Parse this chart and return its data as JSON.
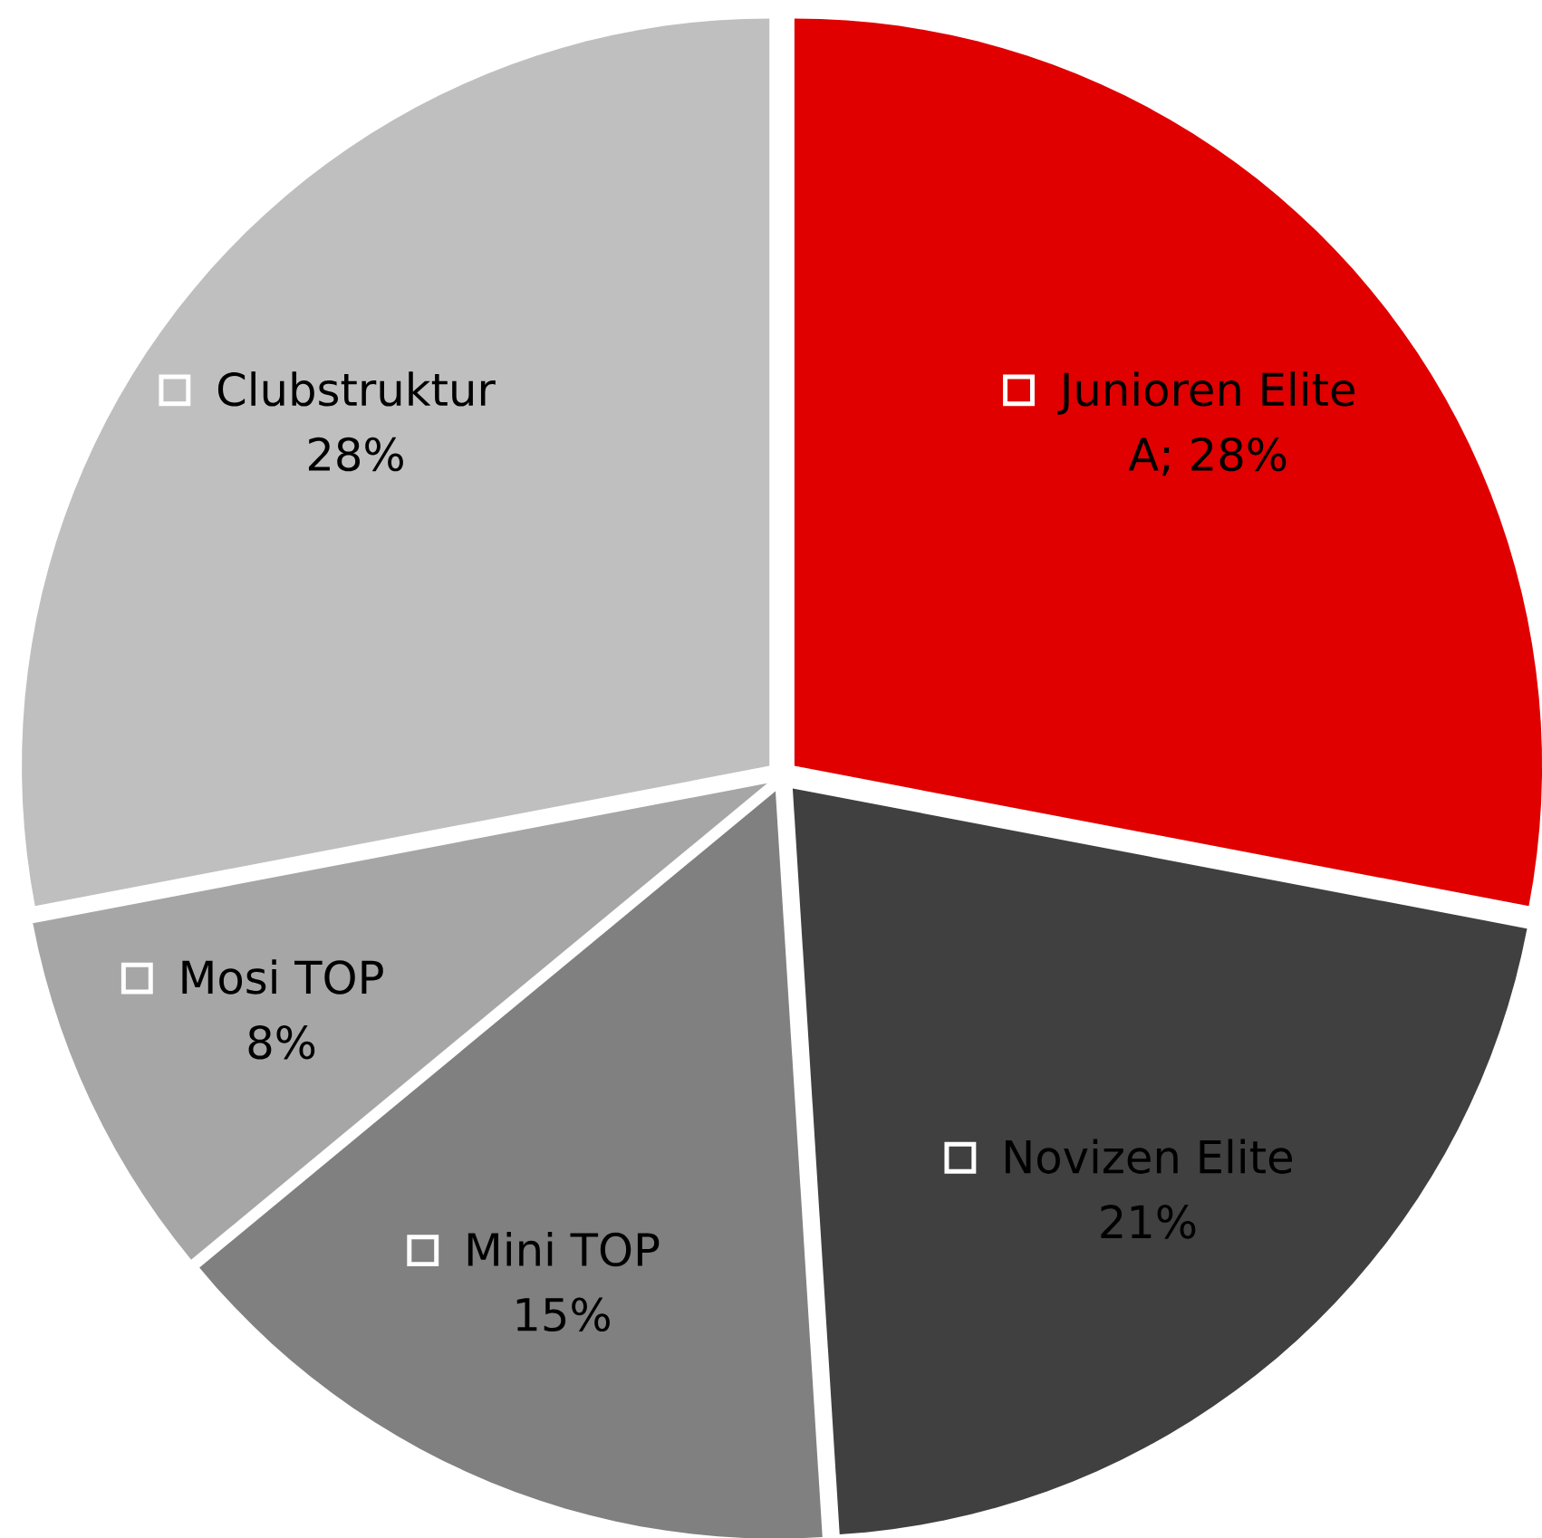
{
  "chart_data": {
    "type": "pie",
    "legend": "bottom left",
    "categories": [
      "Junioren Elite",
      "Novizen Elite",
      "Mini TOP",
      "Mosi TOP",
      "Clubstruktur"
    ],
    "values": [
      28,
      21,
      15,
      8,
      28
    ],
    "value_labels": [
      "A; 28%",
      "21%",
      "15%",
      "8%",
      "28%"
    ],
    "colors": [
      "#e00000",
      "#404040",
      "#808080",
      "#a6a6a6",
      "#bfbfbf"
    ]
  }
}
